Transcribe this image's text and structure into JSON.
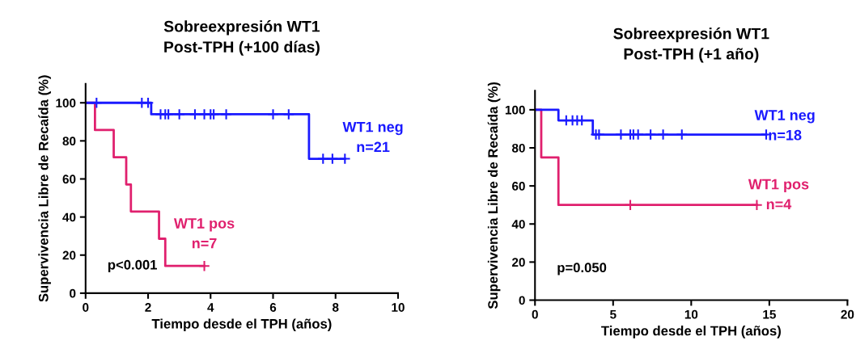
{
  "chart_data": [
    {
      "type": "step",
      "title": "Sobreexpresión WT1\nPost-TPH (+100 días)",
      "xlabel": "Tiempo desde el TPH (años)",
      "ylabel": "Supervivencia Libre de Recaída (%)",
      "xlim": [
        0,
        10
      ],
      "xticks": [
        0,
        2,
        4,
        6,
        8,
        10
      ],
      "ylim": [
        0,
        110
      ],
      "yticks": [
        0,
        20,
        40,
        60,
        80,
        100
      ],
      "grid": false,
      "legend": false,
      "annotations": [
        "p<0.001"
      ],
      "series": [
        {
          "name": "WT1 neg\nn=21",
          "color": "#1a1aff",
          "x": [
            0,
            2.1,
            7.15,
            8.3
          ],
          "values": [
            100,
            94,
            70.6,
            70.6
          ]
        },
        {
          "name": "WT1 pos\nn=7",
          "color": "#e0206e",
          "x": [
            0,
            0.3,
            0.9,
            1.3,
            1.45,
            2.35,
            2.55,
            3.8
          ],
          "values": [
            100,
            85.7,
            71.4,
            57.1,
            42.9,
            28.6,
            14.3,
            14.3
          ]
        },
        {
          "type": "scatter",
          "marker": "cross",
          "color": "#1a1aff",
          "x": [
            0.35,
            1.8,
            2.0,
            2.4,
            2.55,
            2.65,
            3.0,
            3.5,
            3.8,
            4.0,
            4.1,
            4.5,
            6.0,
            6.5,
            7.6,
            7.9,
            8.3
          ],
          "values": [
            100,
            100,
            100,
            94,
            94,
            94,
            94,
            94,
            94,
            94,
            94,
            94,
            94,
            94,
            70.6,
            70.6,
            70.6
          ]
        },
        {
          "type": "scatter",
          "marker": "cross",
          "color": "#e0206e",
          "x": [
            3.8
          ],
          "values": [
            14.3
          ]
        }
      ]
    },
    {
      "type": "step",
      "title": "Sobreexpresión WT1\nPost-TPH (+1 año)",
      "xlabel": "Tiempo desde el TPH (años)",
      "ylabel": "Supervivencia Libre de Recaída (%)",
      "xlim": [
        0,
        20
      ],
      "xticks": [
        0,
        5,
        10,
        15,
        20
      ],
      "ylim": [
        0,
        110
      ],
      "yticks": [
        0,
        20,
        40,
        60,
        80,
        100
      ],
      "grid": false,
      "legend": false,
      "annotations": [
        "p=0.050"
      ],
      "series": [
        {
          "name": "WT1 neg\nn=18",
          "color": "#1a1aff",
          "x": [
            0,
            1.5,
            3.7,
            14.8
          ],
          "values": [
            100,
            94.4,
            87,
            87
          ]
        },
        {
          "name": "WT1 pos\nn=4",
          "color": "#e0206e",
          "x": [
            0,
            0.4,
            1.5,
            14.2
          ],
          "values": [
            100,
            75,
            50,
            50
          ]
        },
        {
          "type": "scatter",
          "marker": "cross",
          "color": "#1a1aff",
          "x": [
            2.0,
            2.4,
            2.7,
            3.0,
            3.9,
            4.1,
            5.5,
            6.1,
            6.3,
            6.6,
            7.4,
            8.2,
            9.4,
            14.8
          ],
          "values": [
            94.4,
            94.4,
            94.4,
            94.4,
            87,
            87,
            87,
            87,
            87,
            87,
            87,
            87,
            87,
            87
          ]
        },
        {
          "type": "scatter",
          "marker": "cross",
          "color": "#e0206e",
          "x": [
            6.1,
            14.2
          ],
          "values": [
            50,
            50
          ]
        }
      ]
    }
  ]
}
